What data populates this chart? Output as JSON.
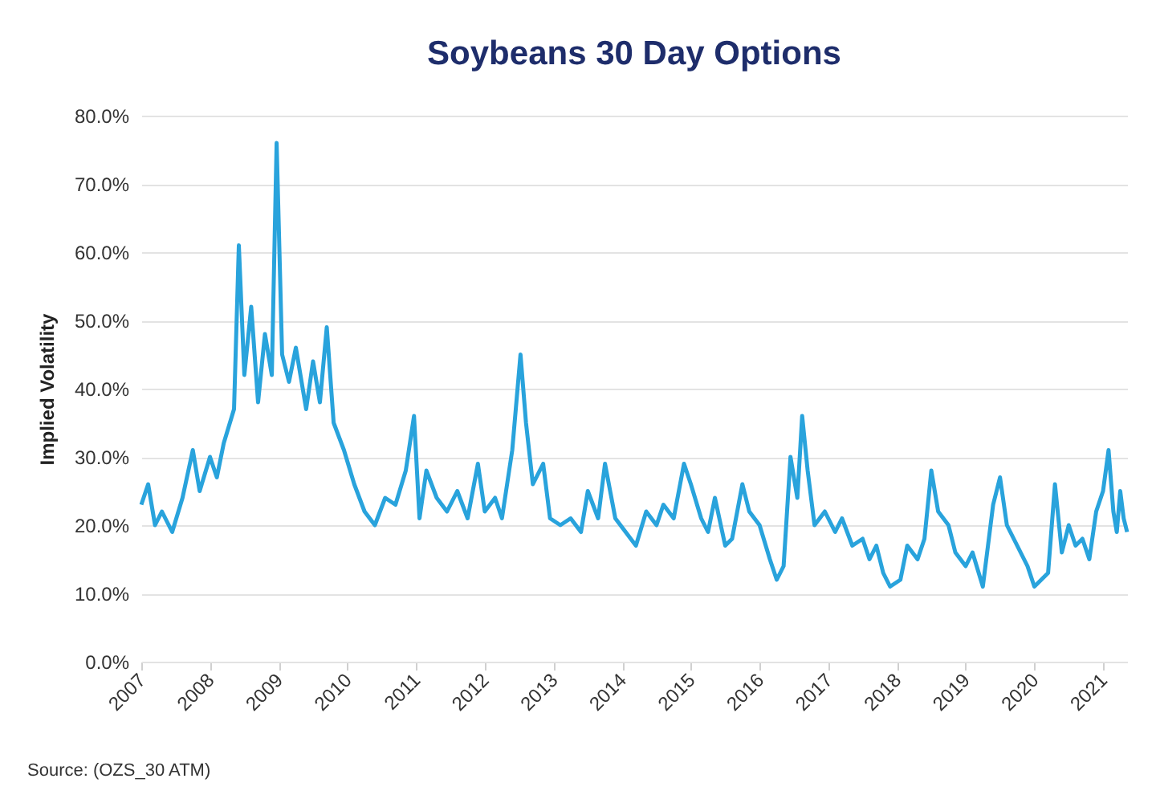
{
  "chart_data": {
    "type": "line",
    "title": "Soybeans 30 Day Options",
    "ylabel": "Implied Volatility",
    "annotations": [
      "Source: (OZS_30 ATM)"
    ],
    "xlim": [
      2007,
      2021.35
    ],
    "xticks": [
      2007,
      2008,
      2009,
      2010,
      2011,
      2012,
      2013,
      2014,
      2015,
      2016,
      2017,
      2018,
      2019,
      2020,
      2021
    ],
    "ylim": [
      0,
      80
    ],
    "yticks": [
      {
        "value": 0,
        "label": "0.0%"
      },
      {
        "value": 10,
        "label": "10.0%"
      },
      {
        "value": 20,
        "label": "20.0%"
      },
      {
        "value": 30,
        "label": "30.0%"
      },
      {
        "value": 40,
        "label": "40.0%"
      },
      {
        "value": 50,
        "label": "50.0%"
      },
      {
        "value": 60,
        "label": "60.0%"
      },
      {
        "value": 70,
        "label": "70.0%"
      },
      {
        "value": 80,
        "label": "80.0%"
      }
    ],
    "grid": "y",
    "marker": "none",
    "line_style": "solid",
    "x": [
      2007.0,
      2007.1,
      2007.2,
      2007.3,
      2007.45,
      2007.6,
      2007.75,
      2007.85,
      2008.0,
      2008.1,
      2008.2,
      2008.35,
      2008.42,
      2008.5,
      2008.6,
      2008.7,
      2008.8,
      2008.9,
      2008.97,
      2009.05,
      2009.15,
      2009.25,
      2009.4,
      2009.5,
      2009.6,
      2009.7,
      2009.8,
      2009.95,
      2010.1,
      2010.25,
      2010.4,
      2010.55,
      2010.7,
      2010.85,
      2010.97,
      2011.05,
      2011.15,
      2011.3,
      2011.45,
      2011.6,
      2011.75,
      2011.9,
      2012.0,
      2012.15,
      2012.25,
      2012.4,
      2012.52,
      2012.6,
      2012.7,
      2012.85,
      2012.95,
      2013.1,
      2013.25,
      2013.4,
      2013.5,
      2013.65,
      2013.75,
      2013.9,
      2014.05,
      2014.2,
      2014.35,
      2014.5,
      2014.6,
      2014.75,
      2014.9,
      2015.0,
      2015.15,
      2015.25,
      2015.35,
      2015.5,
      2015.6,
      2015.75,
      2015.85,
      2016.0,
      2016.15,
      2016.25,
      2016.35,
      2016.45,
      2016.55,
      2016.62,
      2016.7,
      2016.8,
      2016.95,
      2017.1,
      2017.2,
      2017.35,
      2017.5,
      2017.6,
      2017.7,
      2017.8,
      2017.9,
      2018.05,
      2018.15,
      2018.3,
      2018.4,
      2018.5,
      2018.6,
      2018.75,
      2018.85,
      2019.0,
      2019.1,
      2019.25,
      2019.4,
      2019.5,
      2019.6,
      2019.7,
      2019.8,
      2019.9,
      2020.0,
      2020.1,
      2020.2,
      2020.3,
      2020.4,
      2020.5,
      2020.6,
      2020.7,
      2020.8,
      2020.9,
      2021.0,
      2021.08,
      2021.15,
      2021.2,
      2021.25,
      2021.3,
      2021.35
    ],
    "series": [
      {
        "color": "#29a3dc",
        "values": [
          23,
          26,
          20,
          22,
          19,
          24,
          31,
          25,
          30,
          27,
          32,
          37,
          61,
          42,
          52,
          38,
          48,
          42,
          76,
          45,
          41,
          46,
          37,
          44,
          38,
          49,
          35,
          31,
          26,
          22,
          20,
          24,
          23,
          28,
          36,
          21,
          28,
          24,
          22,
          25,
          21,
          29,
          22,
          24,
          21,
          31,
          45,
          35,
          26,
          29,
          21,
          20,
          21,
          19,
          25,
          21,
          29,
          21,
          19,
          17,
          22,
          20,
          23,
          21,
          29,
          26,
          21,
          19,
          24,
          17,
          18,
          26,
          22,
          20,
          15,
          12,
          14,
          30,
          24,
          36,
          28,
          20,
          22,
          19,
          21,
          17,
          18,
          15,
          17,
          13,
          11,
          12,
          17,
          15,
          18,
          28,
          22,
          20,
          16,
          14,
          16,
          11,
          23,
          27,
          20,
          18,
          16,
          14,
          11,
          12,
          13,
          26,
          16,
          20,
          17,
          18,
          15,
          22,
          25,
          31,
          22,
          19,
          25,
          21,
          19
        ]
      }
    ]
  }
}
